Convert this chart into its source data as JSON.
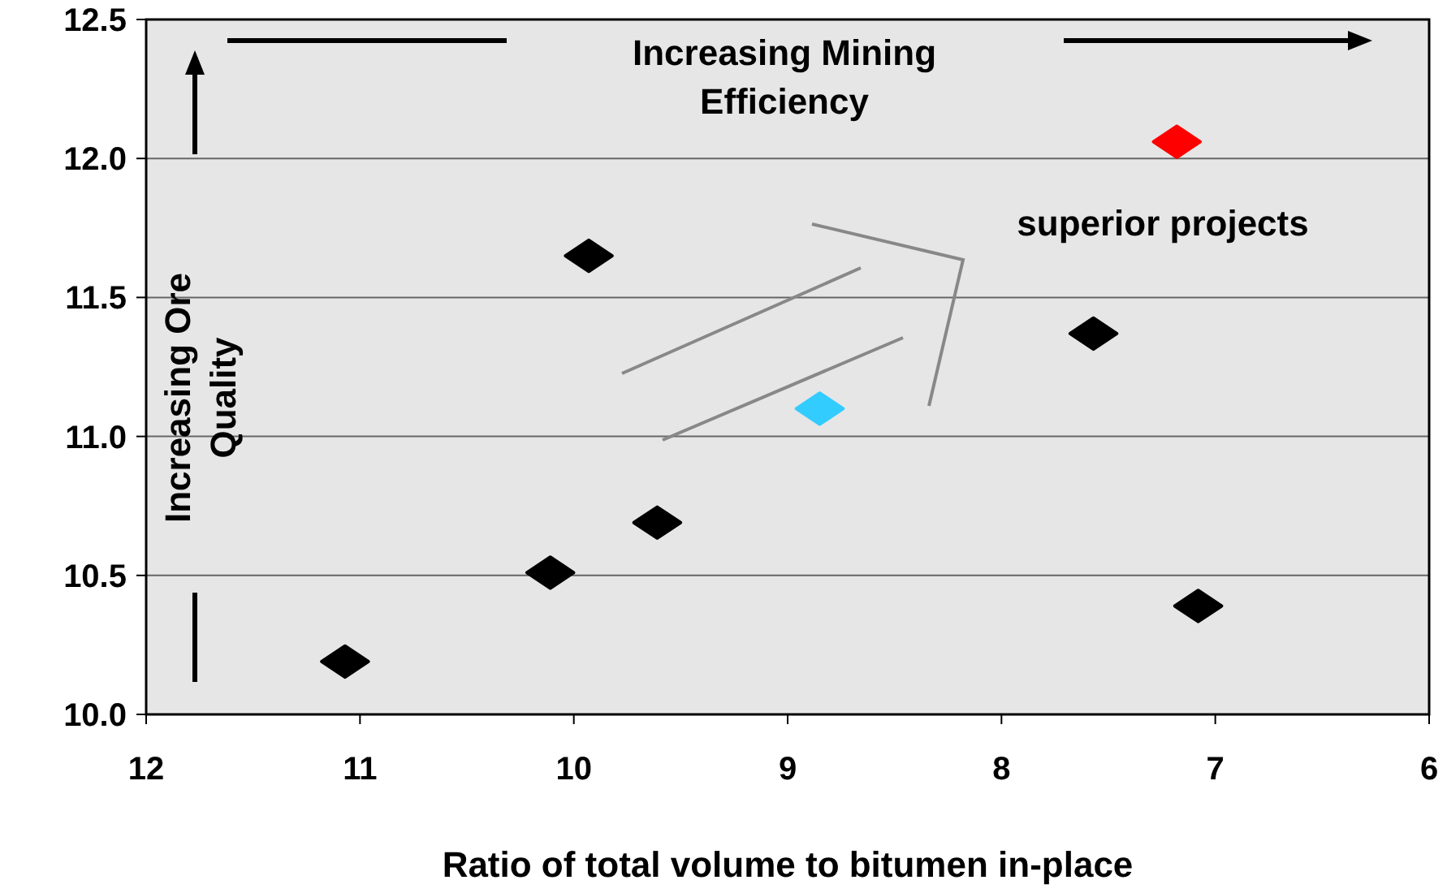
{
  "chart_data": {
    "type": "scatter",
    "xlabel": "Ratio of total volume to bitumen in-place",
    "xlim": [
      12,
      6
    ],
    "xticks": [
      12,
      11,
      10,
      9,
      8,
      7,
      6
    ],
    "ylim": [
      10,
      12.5
    ],
    "yticks": [
      {
        "value": 10,
        "label": "10.0"
      },
      {
        "value": 10.5,
        "label": "10.5"
      },
      {
        "value": 11,
        "label": "11.0"
      },
      {
        "value": 11.5,
        "label": "11.5"
      },
      {
        "value": 12,
        "label": "12.0"
      },
      {
        "value": 12.5,
        "label": "12.5"
      }
    ],
    "grid": "y",
    "marker": "diamond",
    "series": [
      {
        "color": "#000000",
        "x": [
          11.07,
          10.11,
          9.61,
          9.93,
          7.57,
          7.08
        ],
        "values": [
          10.19,
          10.51,
          10.69,
          11.65,
          11.37,
          10.39
        ]
      },
      {
        "color": "#33ccff",
        "x": [
          8.85
        ],
        "values": [
          11.1
        ]
      },
      {
        "color": "#ff0000",
        "x": [
          7.18
        ],
        "values": [
          12.06
        ]
      }
    ],
    "annotations": [
      "Increasing Mining Efficiency",
      "Increasing Ore Quality",
      "superior projects"
    ]
  }
}
